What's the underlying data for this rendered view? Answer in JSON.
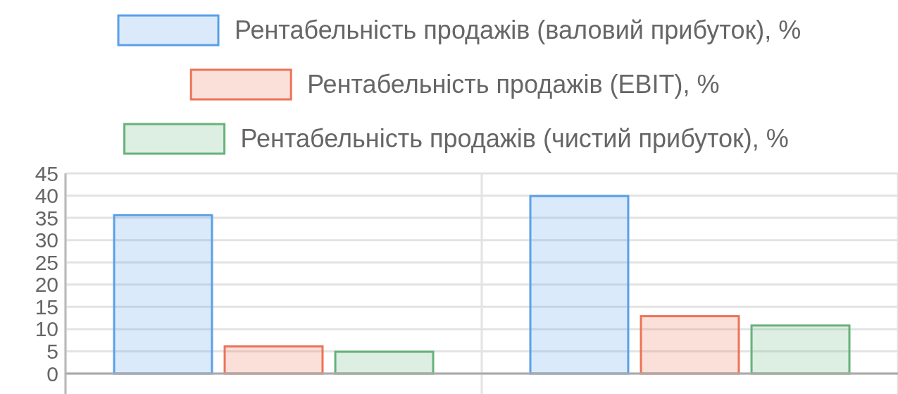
{
  "chart_data": {
    "type": "bar",
    "categories": [
      null,
      null
    ],
    "series": [
      {
        "name": "Рентабельність продажів (валовий прибуток), %",
        "color": "#5aa0e8",
        "values": [
          35.6,
          39.9
        ]
      },
      {
        "name": "Рентабельність продажів (EBIT), %",
        "color": "#ec7358",
        "values": [
          6.1,
          12.9
        ]
      },
      {
        "name": "Рентабельність продажів (чистий прибуток), %",
        "color": "#66b27a",
        "values": [
          4.9,
          10.8
        ]
      }
    ],
    "ylim": [
      0,
      45
    ],
    "yticks": [
      0,
      5,
      10,
      15,
      20,
      25,
      30,
      35,
      40,
      45
    ],
    "grid": true,
    "legend": "top"
  }
}
